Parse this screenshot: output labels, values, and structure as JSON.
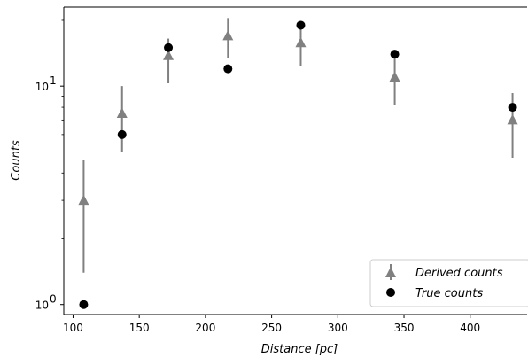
{
  "chart_data": {
    "type": "scatter",
    "xlabel": "Distance [pc]",
    "ylabel": "Counts",
    "xlim": [
      93,
      443
    ],
    "ylim": [
      0.9,
      23
    ],
    "yscale": "log",
    "x_ticks": [
      100,
      150,
      200,
      250,
      300,
      350,
      400
    ],
    "y_ticks": [
      {
        "value": 1,
        "base": "10",
        "exp": "0"
      },
      {
        "value": 10,
        "base": "10",
        "exp": "1"
      }
    ],
    "legend_position": "lower-right",
    "series": [
      {
        "name": "Derived counts",
        "marker": "triangle",
        "color": "#808080",
        "points": [
          {
            "x": 108,
            "y": 3.0,
            "err_low": 1.4,
            "err_high": 4.6
          },
          {
            "x": 137,
            "y": 7.5,
            "err_low": 5.0,
            "err_high": 10.0
          },
          {
            "x": 172,
            "y": 13.8,
            "err_low": 10.3,
            "err_high": 16.5
          },
          {
            "x": 217,
            "y": 17.0,
            "err_low": 13.5,
            "err_high": 20.5
          },
          {
            "x": 272,
            "y": 15.8,
            "err_low": 12.3,
            "err_high": 19.5
          },
          {
            "x": 343,
            "y": 11.0,
            "err_low": 8.2,
            "err_high": 14.0
          },
          {
            "x": 432,
            "y": 7.0,
            "err_low": 4.7,
            "err_high": 9.3
          }
        ]
      },
      {
        "name": "True counts",
        "marker": "circle",
        "color": "#000000",
        "points": [
          {
            "x": 108,
            "y": 1.0
          },
          {
            "x": 137,
            "y": 6.0
          },
          {
            "x": 172,
            "y": 15.0
          },
          {
            "x": 217,
            "y": 12.0
          },
          {
            "x": 272,
            "y": 19.0
          },
          {
            "x": 343,
            "y": 14.0
          },
          {
            "x": 432,
            "y": 8.0
          }
        ]
      }
    ]
  }
}
